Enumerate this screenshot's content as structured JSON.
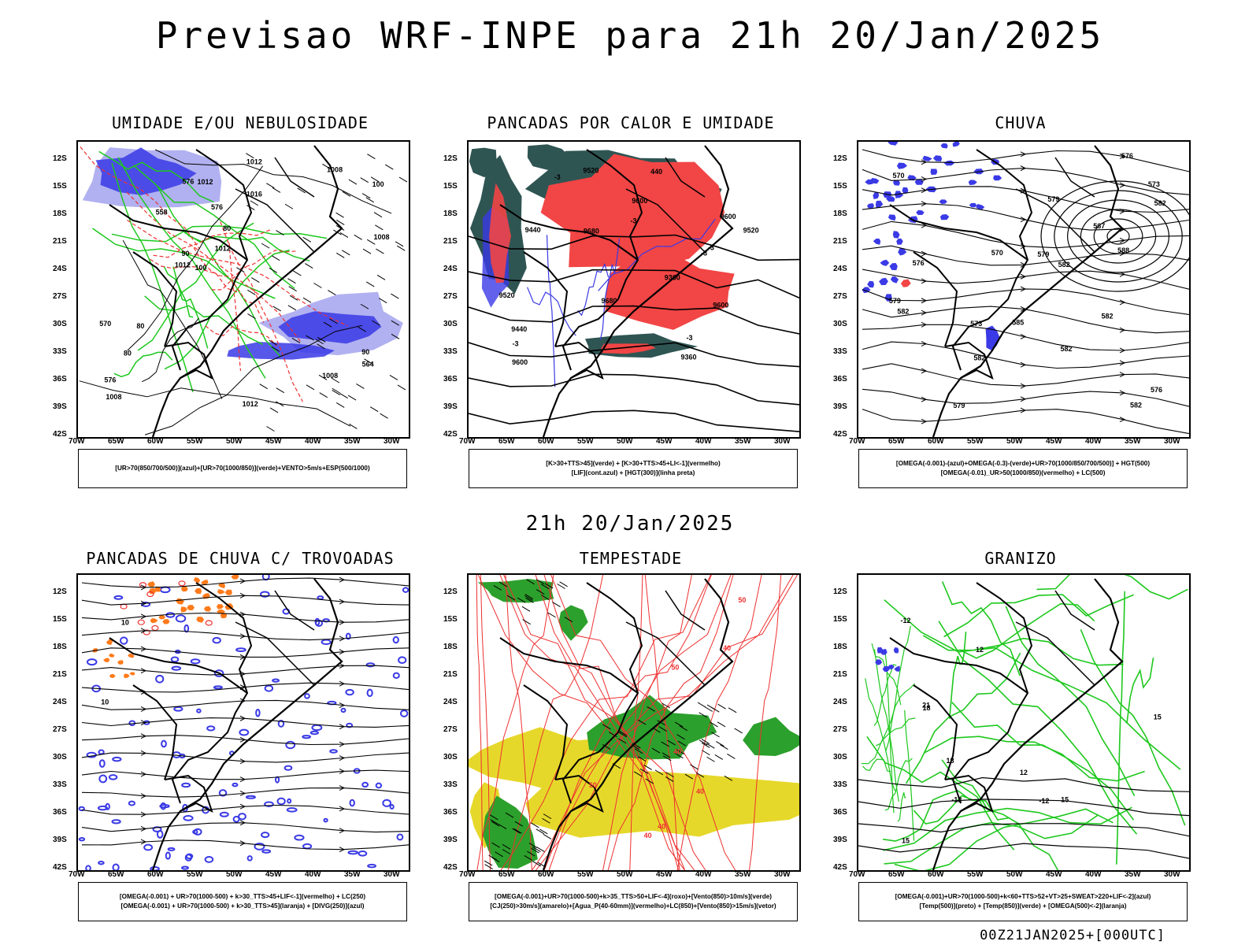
{
  "header": {
    "title": "Previsao WRF-INPE  para 21h 20/Jan/2025",
    "subtitle": "21h 20/Jan/2025",
    "footer": "00Z21JAN2025+[000UTC]"
  },
  "axes": {
    "lat_labels": [
      "12S",
      "15S",
      "18S",
      "21S",
      "24S",
      "27S",
      "30S",
      "33S",
      "36S",
      "39S",
      "42S"
    ],
    "lon_labels": [
      "70W",
      "65W",
      "60W",
      "55W",
      "50W",
      "45W",
      "40W",
      "35W",
      "30W"
    ]
  },
  "colors": {
    "blue_area": "#3a3ae6",
    "light_blue": "#a9a9f0",
    "green_line": "#1ec81e",
    "red_area": "#f24545",
    "dark_teal": "#2f5553",
    "yellow_area": "#e6d82a",
    "orange": "#ff7a1a",
    "red_line": "#ee3030"
  },
  "panels": [
    {
      "title": "UMIDADE E/OU NEBULOSIDADE",
      "legend": [
        "[UR>70(850/700/500)](azul)+[UR>70(1000/850)](verde)+VENTO>5m/s+ESP(500/1000)"
      ],
      "contour_labels": [
        "100",
        "100",
        "90",
        "90",
        "80",
        "80",
        "1012",
        "1012",
        "1012",
        "1012",
        "1008",
        "1008",
        "1008",
        "1008",
        "1012",
        "1016",
        "576",
        "576",
        "576",
        "570",
        "558",
        "564",
        "80"
      ]
    },
    {
      "title": "PANCADAS POR CALOR E UMIDADE",
      "legend": [
        "[K>30+TTS>45](verde)  +  [K>30+TTS>45+LI<-1](vermelho)",
        "[LIF](cont.azul)  +  [HGT(300)](linha preta)"
      ],
      "contour_labels": [
        "9600",
        "9600",
        "9680",
        "9680",
        "9600",
        "9600",
        "9520",
        "9520",
        "9440",
        "9520",
        "9440",
        "9360",
        "9360",
        "-3",
        "-3",
        "-3",
        "-3",
        "-3",
        "-3",
        "440"
      ]
    },
    {
      "title": "CHUVA",
      "legend": [
        "[OMEGA(-0.001)-(azul)+OMEGA(-0.3)-(verde)+UR>70(1000/850/700/500)]  +  HGT(500)",
        "[OMEGA(-0.01)_UR>50(1000/850)(vermelho)  +  LC(500)"
      ],
      "contour_labels": [
        "582",
        "582",
        "585",
        "588",
        "582",
        "582",
        "582",
        "579",
        "576",
        "579",
        "582",
        "579",
        "576",
        "573",
        "570",
        "567",
        "579",
        "576",
        "573",
        "570",
        "582"
      ]
    },
    {
      "title": "PANCADAS DE CHUVA C/ TROVOADAS",
      "legend": [
        "[OMEGA(-0.001)  +  UR>70(1000-500)  +  k>30_TTS>45+LIF<-1](vermelho)  +  LC(250)",
        "[OMEGA(-0.001)  +  UR>70(1000-500)  +  k>30_TTS>45](laranja)  +  [DIVG(250)](azul)"
      ],
      "contour_labels": [
        "10",
        "10"
      ]
    },
    {
      "title": "TEMPESTADE",
      "legend": [
        "[OMEGA(-0.001)+UR>70(1000-500)+k>35_TTS>50+LIF<-4](roxo)+[Vento(850)>10m/s](verde)",
        "[CJ(250)>30m/s](amarelo)+[Agua_P(40-60mm)](vermelho)+LC(850)+[Vento(850)>15m/s](vetor)"
      ],
      "contour_labels": [
        "40",
        "40",
        "50",
        "40",
        "50",
        "40",
        "40",
        "50"
      ]
    },
    {
      "title": "GRANIZO",
      "legend": [
        "[OMEGA(-0.001)+UR>70(1000-500)+k<60+TTS>52+VT>25+SWEAT>220+LIF<-2](azul)",
        "[Temp(500)](preto)  +  [Temp(850)](verde)  +  [OMEGA(500)<-2](laranja)"
      ],
      "contour_labels": [
        "15",
        "18",
        "21",
        "18",
        "15",
        "12",
        "12",
        "-12",
        "-12",
        "15",
        "-12"
      ]
    }
  ]
}
